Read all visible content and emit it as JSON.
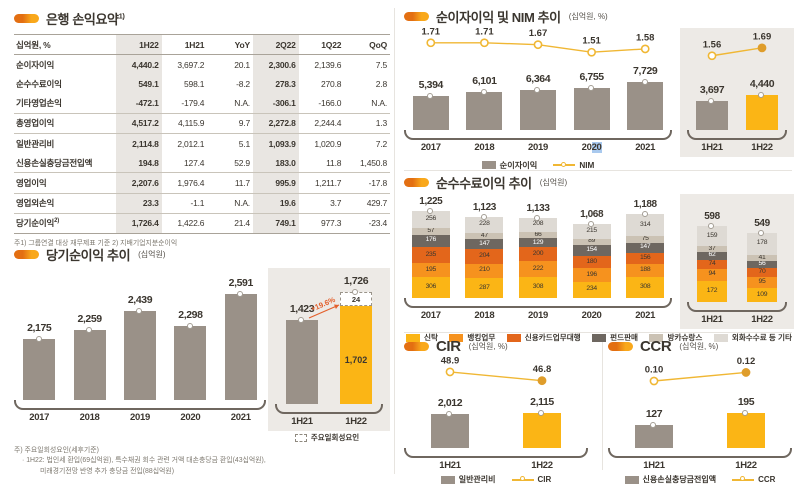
{
  "palette": {
    "text": "#3B362F",
    "muted": "#7D786F",
    "gray_bar": "#9A9188",
    "yellow": "#FBB515",
    "orange": "#F6921E",
    "deep_orange": "#E3661B",
    "dark_gray": "#6E6760",
    "beige": "#CBC2B4",
    "light_gray": "#DEDAD4",
    "line_yellow": "#F0B734",
    "marker_fill": "#DF9D2B",
    "axis": "#6F675F",
    "panel_bg": "#EDEAE6",
    "col_highlight": "#E9E6E2",
    "arrow": "#E45F2B",
    "select_blue": "#A9C9EE"
  },
  "table_section": {
    "title": "은행 손익요약",
    "title_sup": "1)",
    "columns": [
      "십억원, %",
      "1H22",
      "1H21",
      "YoY",
      "2Q22",
      "1Q22",
      "QoQ"
    ],
    "highlight_cols": [
      1,
      4
    ],
    "rows": [
      {
        "label": "순이자이익",
        "values": [
          "4,440.2",
          "3,697.2",
          "20.1",
          "2,300.6",
          "2,139.6",
          "7.5"
        ],
        "sep": false
      },
      {
        "label": "순수수료이익",
        "values": [
          "549.1",
          "598.1",
          "-8.2",
          "278.3",
          "270.8",
          "2.8"
        ],
        "sep": false
      },
      {
        "label": "기타영업손익",
        "values": [
          "-472.1",
          "-179.4",
          "N.A.",
          "-306.1",
          "-166.0",
          "N.A."
        ],
        "sep": true
      },
      {
        "label": "총영업이익",
        "values": [
          "4,517.2",
          "4,115.9",
          "9.7",
          "2,272.8",
          "2,244.4",
          "1.3"
        ],
        "sep": true
      },
      {
        "label": "일반관리비",
        "values": [
          "2,114.8",
          "2,012.1",
          "5.1",
          "1,093.9",
          "1,020.9",
          "7.2"
        ],
        "sep": false
      },
      {
        "label": "신용손실충당금전입액",
        "values": [
          "194.8",
          "127.4",
          "52.9",
          "183.0",
          "11.8",
          "1,450.8"
        ],
        "sep": true
      },
      {
        "label": "영업이익",
        "values": [
          "2,207.6",
          "1,976.4",
          "11.7",
          "995.9",
          "1,211.7",
          "-17.8"
        ],
        "sep": true
      },
      {
        "label": "영업외손익",
        "values": [
          "23.3",
          "-1.1",
          "N.A.",
          "19.6",
          "3.7",
          "429.7"
        ],
        "sep": true
      },
      {
        "label": "당기순이익",
        "sup": "2)",
        "values": [
          "1,726.4",
          "1,422.6",
          "21.4",
          "749.1",
          "977.3",
          "-23.4"
        ],
        "sep": false
      }
    ],
    "footnote": "주1) 그룹연결 대상 재무제표 기준   2) 지배기업지분순이익"
  },
  "chart_data": [
    {
      "id": "net_income",
      "type": "bar",
      "title": "당기순이익 추이",
      "unit": "(십억원)",
      "categories": [
        "2017",
        "2018",
        "2019",
        "2020",
        "2021"
      ],
      "values": [
        2175,
        2259,
        2439,
        2298,
        2591
      ],
      "labels": [
        "2,175",
        "2,259",
        "2,439",
        "2,298",
        "2,591"
      ],
      "series_color": "gray_bar",
      "ylabel": "",
      "grid": false,
      "inset": {
        "categories": [
          "1H21",
          "1H22"
        ],
        "bars": [
          {
            "cat": "1H21",
            "value": 1423,
            "label": "1,423",
            "color": "gray_bar"
          },
          {
            "cat": "1H22",
            "value": 1702,
            "label": "1,702",
            "color": "yellow",
            "oneoff_value": 24,
            "oneoff_label": "24",
            "total_label": "1,726"
          }
        ],
        "growth_label": "+19.6%",
        "legend": [
          {
            "type": "dashed",
            "label": "주요일회성요인"
          }
        ]
      },
      "footnotes": [
        "주) 주요일회성요인(세후기준)",
        "· 1H22: 법인세 환입(69십억원), 특수채권 회수 관련 거액 대손충당금 환입(43십억원),",
        "미래경기전망 반영 추가 충당금 전입(88십억원)"
      ]
    },
    {
      "id": "nii_nim",
      "type": "bar+line",
      "title": "순이자이익 및 NIM 추이",
      "unit": "(십억원, %)",
      "categories": [
        "2017",
        "2018",
        "2019",
        "2020",
        "2021"
      ],
      "bar_series": {
        "name": "순이자이익",
        "color": "gray_bar",
        "values": [
          5394,
          6101,
          6364,
          6755,
          7729
        ],
        "labels": [
          "5,394",
          "6,101",
          "6,364",
          "6,755",
          "7,729"
        ]
      },
      "line_series": {
        "name": "NIM",
        "values": [
          1.71,
          1.71,
          1.67,
          1.51,
          1.58
        ],
        "labels": [
          "1.71",
          "1.71",
          "1.67",
          "1.51",
          "1.58"
        ],
        "last_marker_filled": false
      },
      "category_selection": {
        "index": 3,
        "prefix": "20",
        "selected": "20"
      },
      "inset": {
        "categories": [
          "1H21",
          "1H22"
        ],
        "bar_values": [
          3697,
          4440
        ],
        "bar_labels": [
          "3,697",
          "4,440"
        ],
        "bar_colors": [
          "gray_bar",
          "yellow"
        ],
        "line_values": [
          1.56,
          1.69
        ],
        "line_labels": [
          "1.56",
          "1.69"
        ],
        "last_marker_filled": true
      },
      "legend": [
        {
          "type": "rect",
          "color": "gray_bar",
          "label": "순이자이익"
        },
        {
          "type": "line",
          "label": "NIM"
        }
      ]
    },
    {
      "id": "fee",
      "type": "stacked-bar",
      "title": "순수수료이익 추이",
      "unit": "(십억원)",
      "categories": [
        "2017",
        "2018",
        "2019",
        "2020",
        "2021"
      ],
      "totals": [
        1225,
        1123,
        1133,
        1068,
        1188
      ],
      "total_labels": [
        "1,225",
        "1,123",
        "1,133",
        "1,068",
        "1,188"
      ],
      "series": [
        {
          "name": "신탁",
          "color": "yellow",
          "values": [
            306,
            287,
            308,
            234,
            308
          ]
        },
        {
          "name": "뱅킹업무",
          "color": "orange",
          "values": [
            195,
            210,
            222,
            196,
            188
          ]
        },
        {
          "name": "신용카드업무대행",
          "color": "deep_orange",
          "values": [
            235,
            204,
            200,
            180,
            156
          ]
        },
        {
          "name": "펀드판매",
          "color": "dark_gray",
          "text": "light",
          "values": [
            176,
            147,
            129,
            154,
            147
          ]
        },
        {
          "name": "방카슈랑스",
          "color": "beige",
          "values": [
            57,
            47,
            66,
            89,
            75
          ]
        },
        {
          "name": "외화수수료 등 기타",
          "color": "light_gray",
          "values": [
            256,
            228,
            208,
            215,
            314
          ]
        }
      ],
      "inset": {
        "categories": [
          "1H21",
          "1H22"
        ],
        "totals": [
          598,
          549
        ],
        "total_labels": [
          "598",
          "549"
        ],
        "series_values": [
          [
            172,
            109
          ],
          [
            94,
            95
          ],
          [
            74,
            70
          ],
          [
            62,
            56
          ],
          [
            37,
            41
          ],
          [
            159,
            178
          ]
        ]
      }
    },
    {
      "id": "cir",
      "type": "bar+line",
      "title": "CIR",
      "unit": "(십억원, %)",
      "categories": [
        "1H21",
        "1H22"
      ],
      "bar_series": {
        "name": "일반관리비",
        "values": [
          2012,
          2115
        ],
        "labels": [
          "2,012",
          "2,115"
        ],
        "colors": [
          "gray_bar",
          "yellow"
        ]
      },
      "line_series": {
        "name": "CIR",
        "values": [
          48.9,
          46.8
        ],
        "labels": [
          "48.9",
          "46.8"
        ],
        "last_marker_filled": true
      },
      "legend": [
        {
          "type": "rect",
          "color": "gray_bar",
          "label": "일반관리비"
        },
        {
          "type": "line",
          "label": "CIR"
        }
      ]
    },
    {
      "id": "ccr",
      "type": "bar+line",
      "title": "CCR",
      "unit": "(십억원, %)",
      "categories": [
        "1H21",
        "1H22"
      ],
      "bar_series": {
        "name": "신용손실충당금전입액",
        "values": [
          127,
          195
        ],
        "labels": [
          "127",
          "195"
        ],
        "colors": [
          "gray_bar",
          "yellow"
        ]
      },
      "line_series": {
        "name": "CCR",
        "values": [
          0.1,
          0.12
        ],
        "labels": [
          "0.10",
          "0.12"
        ],
        "last_marker_filled": true
      },
      "legend": [
        {
          "type": "rect",
          "color": "gray_bar",
          "label": "신용손실충당금전입액"
        },
        {
          "type": "line",
          "label": "CCR"
        }
      ]
    }
  ]
}
